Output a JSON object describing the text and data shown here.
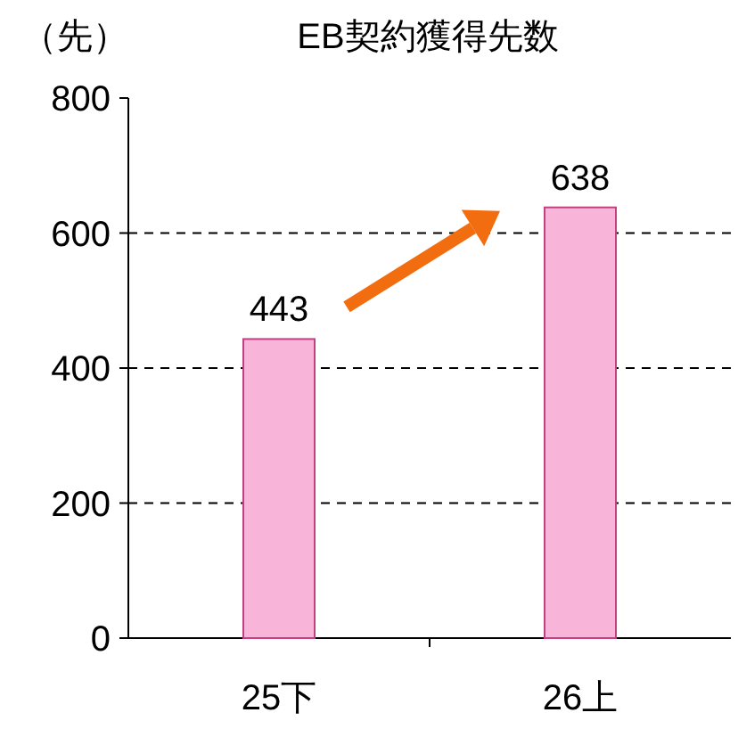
{
  "chart_data": {
    "type": "bar",
    "title": "EB契約獲得先数",
    "ylabel": "（先）",
    "categories": [
      "25下",
      "26上"
    ],
    "values": [
      443,
      638
    ],
    "color": "#f9b5d9",
    "ylim": [
      0,
      800
    ],
    "yticks": [
      0,
      200,
      400,
      600,
      800
    ],
    "grid": "y",
    "data_labels": true
  }
}
